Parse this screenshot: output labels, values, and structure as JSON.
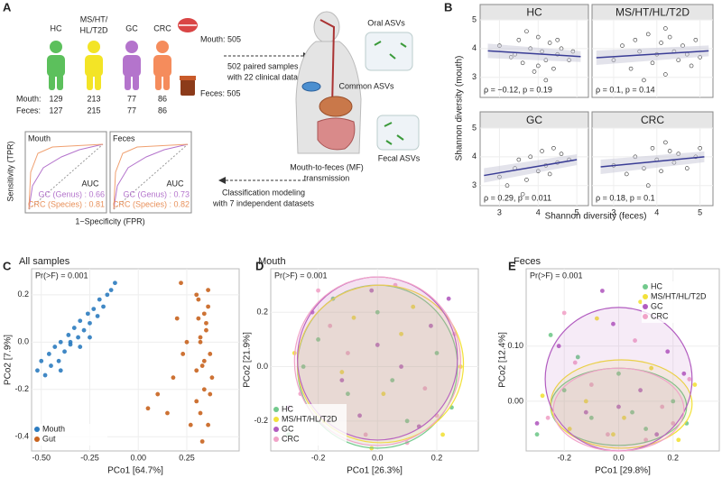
{
  "diagram": {
    "panel": "A",
    "groups": [
      {
        "name_lines": [
          "HC"
        ],
        "color": "#5cc05c",
        "mouth": "129",
        "feces": "127"
      },
      {
        "name_lines": [
          "MS/HT/",
          "HL/T2D"
        ],
        "color": "#f3e426",
        "mouth": "213",
        "feces": "215"
      },
      {
        "name_lines": [
          "GC"
        ],
        "color": "#b474cc",
        "mouth": "77",
        "feces": "77"
      },
      {
        "name_lines": [
          "CRC"
        ],
        "color": "#f58c5c",
        "mouth": "86",
        "feces": "86"
      }
    ],
    "mouth_row": "Mouth:",
    "feces_row": "Feces:",
    "mouth_total": "Mouth: 505",
    "feces_total": "Feces: 505",
    "samples": [
      "502 paired samples",
      "with 22 clinical data"
    ],
    "oral": "Oral ASVs",
    "common": "Common ASVs",
    "fecal": "Fecal ASVs",
    "transmission": [
      "Mouth-to-feces (MF)",
      "transmission"
    ],
    "modeling": [
      "Classification modeling",
      "with 7 independent datasets"
    ],
    "roc": [
      {
        "title": "Mouth",
        "auc": "AUC",
        "lines": [
          "GC (Genus) : 0.66",
          "CRC (Species) : 0.81"
        ]
      },
      {
        "title": "Feces",
        "auc": "AUC",
        "lines": [
          "GC (Genus) : 0.73",
          "CRC (Species) : 0.82"
        ]
      }
    ],
    "roc_ylabel": "Sensitivity (TPR)",
    "roc_xlabel": "1−Specificity (FPR)"
  },
  "chart_data": [
    {
      "type": "facet_scatter",
      "panel": "B",
      "ylabel": "Shannon diversity (mouth)",
      "xlabel": "Shannon diversity (feces)",
      "xlim": [
        2.5,
        5.3
      ],
      "ylim": [
        2.3,
        5.0
      ],
      "xticks": [
        3,
        4,
        5
      ],
      "yticks": [
        3,
        4,
        5
      ],
      "color": "#3a3d96",
      "facets": [
        {
          "title": "HC",
          "annotation": "ρ = −0.12, p = 0.19",
          "x": [
            3.0,
            3.3,
            3.5,
            3.6,
            3.8,
            3.9,
            4.0,
            4.1,
            4.2,
            4.3,
            4.4,
            4.5,
            4.6,
            4.8,
            4.9,
            3.7,
            4.2,
            3.4,
            4.5,
            4.0
          ],
          "y": [
            4.1,
            3.7,
            4.3,
            3.5,
            4.0,
            3.2,
            4.4,
            3.9,
            3.6,
            4.2,
            3.3,
            3.8,
            4.0,
            3.6,
            3.9,
            4.6,
            2.9,
            3.8,
            4.3,
            3.4
          ],
          "trend": {
            "x": [
              2.7,
              5.1
            ],
            "y": [
              3.92,
              3.72
            ]
          }
        },
        {
          "title": "MS/HT/HL/T2D",
          "annotation": "ρ = 0.1, p = 0.14",
          "x": [
            3.0,
            3.2,
            3.4,
            3.5,
            3.6,
            3.8,
            3.9,
            4.0,
            4.1,
            4.2,
            4.3,
            4.4,
            4.5,
            4.6,
            4.7,
            4.9,
            5.0,
            3.7,
            4.2,
            4.8
          ],
          "y": [
            3.6,
            4.1,
            3.3,
            4.3,
            3.9,
            4.5,
            3.5,
            3.8,
            4.2,
            3.1,
            4.4,
            3.9,
            3.6,
            4.1,
            3.8,
            4.3,
            3.7,
            2.9,
            4.7,
            3.4
          ],
          "trend": {
            "x": [
              2.6,
              5.2
            ],
            "y": [
              3.68,
              3.92
            ]
          }
        },
        {
          "title": "GC",
          "annotation": "ρ = 0.29, p = 0.011",
          "x": [
            3.0,
            3.2,
            3.4,
            3.5,
            3.7,
            3.8,
            4.0,
            4.1,
            4.2,
            4.4,
            4.5,
            4.6,
            4.8,
            3.6,
            4.3
          ],
          "y": [
            3.3,
            3.0,
            3.6,
            3.9,
            3.2,
            4.0,
            3.5,
            4.2,
            3.7,
            4.3,
            3.8,
            4.1,
            3.9,
            2.7,
            3.4
          ],
          "trend": {
            "x": [
              2.6,
              5.0
            ],
            "y": [
              3.35,
              3.9
            ]
          }
        },
        {
          "title": "CRC",
          "annotation": "ρ = 0.18, p = 0.1",
          "x": [
            3.0,
            3.3,
            3.5,
            3.7,
            3.9,
            4.0,
            4.1,
            4.3,
            4.4,
            4.5,
            4.7,
            4.9,
            5.0,
            3.8,
            4.2
          ],
          "y": [
            3.7,
            3.4,
            4.0,
            3.6,
            4.3,
            3.9,
            3.5,
            4.2,
            3.8,
            4.1,
            3.6,
            4.0,
            4.3,
            3.0,
            4.5
          ],
          "trend": {
            "x": [
              2.7,
              5.1
            ],
            "y": [
              3.65,
              4.0
            ]
          }
        }
      ]
    },
    {
      "type": "scatter",
      "panel": "C",
      "title": "All samples",
      "annotation": "Pr(>F) = 0.001",
      "xlabel": "PCo1 [64.7%]",
      "ylabel": "PCo2 [7.9%]",
      "legend": "bottom-left",
      "xlim": [
        -0.55,
        0.52
      ],
      "ylim": [
        -0.46,
        0.31
      ],
      "xticks": [
        {
          "value": -0.5,
          "label": "-0.50"
        },
        {
          "value": -0.25,
          "label": "-0.25"
        },
        {
          "value": 0,
          "label": "0.00"
        },
        {
          "value": 0.25,
          "label": "0.25"
        }
      ],
      "yticks": [
        0.2,
        {
          "value": 0,
          "label": "0.0"
        },
        -0.2,
        -0.4
      ],
      "series": [
        {
          "name": "Mouth",
          "color": "#2b7bbf",
          "x": [
            -0.52,
            -0.5,
            -0.48,
            -0.46,
            -0.45,
            -0.43,
            -0.41,
            -0.4,
            -0.38,
            -0.36,
            -0.35,
            -0.33,
            -0.31,
            -0.3,
            -0.28,
            -0.26,
            -0.25,
            -0.23,
            -0.21,
            -0.2,
            -0.18,
            -0.16,
            -0.14,
            -0.12,
            -0.3,
            -0.4,
            -0.25,
            -0.35
          ],
          "y": [
            -0.12,
            -0.08,
            -0.14,
            -0.05,
            -0.1,
            -0.02,
            -0.08,
            0.0,
            -0.04,
            0.03,
            -0.01,
            0.06,
            0.02,
            0.09,
            0.05,
            0.12,
            0.08,
            0.14,
            0.11,
            0.18,
            0.15,
            0.2,
            0.22,
            0.25,
            -0.02,
            -0.12,
            0.02,
            0.0
          ]
        },
        {
          "name": "Gut",
          "color": "#c8631e",
          "x": [
            0.3,
            0.31,
            0.32,
            0.33,
            0.34,
            0.35,
            0.36,
            0.37,
            0.38,
            0.3,
            0.32,
            0.34,
            0.36,
            0.33,
            0.35,
            0.31,
            0.37,
            0.34,
            0.32,
            0.36,
            0.3,
            0.22,
            0.2,
            0.15,
            0.1,
            0.05,
            0.25,
            0.18,
            0.23,
            0.27
          ],
          "y": [
            0.2,
            0.1,
            0.0,
            -0.1,
            -0.2,
            0.05,
            0.15,
            -0.05,
            -0.15,
            -0.25,
            -0.3,
            0.12,
            -0.35,
            -0.42,
            0.08,
            0.18,
            -0.22,
            -0.08,
            0.02,
            0.22,
            -0.12,
            0.25,
            0.1,
            -0.3,
            -0.22,
            -0.28,
            0.0,
            -0.15,
            -0.05,
            -0.35
          ]
        }
      ]
    },
    {
      "type": "scatter",
      "panel": "D",
      "title": "Mouth",
      "annotation": "Pr(>F) = 0.001",
      "xlabel": "PCo1 [26.3%]",
      "ylabel": "PCo2 [21.9%]",
      "legend": "bottom-left",
      "xlim": [
        -0.36,
        0.34
      ],
      "ylim": [
        -0.31,
        0.36
      ],
      "xticks": [
        -0.2,
        {
          "value": 0,
          "label": "0.0"
        },
        0.2
      ],
      "yticks": [
        0.2,
        {
          "value": 0,
          "label": "0.0"
        },
        -0.2
      ],
      "series": [
        {
          "name": "HC",
          "color": "#72c98c",
          "ellipse": [
            0.0,
            0.0,
            0.27,
            0.3
          ],
          "x": [
            -0.3,
            -0.2,
            -0.1,
            0.0,
            0.1,
            0.2,
            -0.15,
            0.05,
            0.25,
            -0.25
          ],
          "y": [
            -0.25,
            0.1,
            -0.1,
            0.2,
            -0.2,
            0.05,
            0.25,
            -0.05,
            -0.15,
            0.0
          ]
        },
        {
          "name": "MS/HT/HL/T2D",
          "color": "#f2e13a",
          "ellipse": [
            0.01,
            0.01,
            0.28,
            0.29
          ],
          "x": [
            -0.28,
            -0.18,
            -0.08,
            0.02,
            0.12,
            0.22,
            -0.12,
            0.08,
            0.28,
            -0.02
          ],
          "y": [
            0.05,
            -0.2,
            0.18,
            -0.1,
            0.22,
            -0.25,
            -0.02,
            0.12,
            0.0,
            -0.3
          ]
        },
        {
          "name": "GC",
          "color": "#b25cc0",
          "ellipse": [
            0.0,
            0.03,
            0.27,
            0.3
          ],
          "x": [
            -0.22,
            -0.12,
            -0.02,
            0.08,
            0.18,
            -0.3,
            0.14,
            -0.06,
            0.24,
            0.0
          ],
          "y": [
            0.2,
            -0.05,
            0.28,
            0.0,
            0.15,
            -0.15,
            -0.22,
            -0.18,
            0.25,
            0.08
          ]
        },
        {
          "name": "CRC",
          "color": "#f1a3c8",
          "ellipse": [
            0.0,
            0.02,
            0.28,
            0.31
          ],
          "x": [
            -0.26,
            -0.16,
            -0.04,
            0.06,
            0.16,
            0.26,
            -0.1,
            0.1,
            -0.2,
            0.2
          ],
          "y": [
            -0.1,
            0.15,
            -0.25,
            0.3,
            -0.08,
            0.12,
            0.05,
            -0.28,
            0.28,
            -0.18
          ]
        }
      ]
    },
    {
      "type": "scatter",
      "panel": "E",
      "title": "Feces",
      "annotation": "Pr(>F) = 0.001",
      "xlabel": "PCo1 [29.8%]",
      "ylabel": "PCo2 [12.4%]",
      "legend": "top-right",
      "xlim": [
        -0.34,
        0.37
      ],
      "ylim": [
        -0.09,
        0.24
      ],
      "xticks": [
        -0.2,
        {
          "value": 0,
          "label": "0.0"
        },
        0.2
      ],
      "yticks": [
        {
          "value": 0.1,
          "label": "0.10"
        },
        {
          "value": 0,
          "label": "0.00"
        }
      ],
      "series": [
        {
          "name": "HC",
          "color": "#72c98c",
          "ellipse": [
            0.0,
            -0.01,
            0.25,
            0.07
          ],
          "x": [
            -0.3,
            -0.2,
            -0.1,
            0.0,
            0.1,
            0.2,
            -0.15,
            0.05,
            0.25,
            -0.25
          ],
          "y": [
            -0.06,
            0.02,
            -0.03,
            0.05,
            -0.05,
            0.0,
            0.08,
            -0.02,
            -0.04,
            0.12
          ]
        },
        {
          "name": "MS/HT/HL/T2D",
          "color": "#f2e13a",
          "ellipse": [
            0.01,
            -0.005,
            0.26,
            0.08
          ],
          "x": [
            -0.28,
            -0.18,
            -0.08,
            0.02,
            0.12,
            0.22,
            -0.12,
            0.08,
            0.28,
            -0.02
          ],
          "y": [
            0.01,
            -0.05,
            0.15,
            -0.03,
            0.06,
            -0.07,
            0.0,
            0.18,
            0.03,
            -0.06
          ]
        },
        {
          "name": "GC",
          "color": "#b25cc0",
          "ellipse": [
            0.0,
            0.04,
            0.27,
            0.13
          ],
          "x": [
            -0.22,
            -0.12,
            -0.02,
            0.08,
            0.18,
            -0.3,
            0.14,
            -0.06,
            0.24,
            0.0
          ],
          "y": [
            0.1,
            -0.02,
            0.14,
            0.02,
            0.09,
            -0.04,
            -0.06,
            0.2,
            0.05,
            -0.01
          ]
        },
        {
          "name": "CRC",
          "color": "#f1a3c8",
          "ellipse": [
            0.0,
            -0.015,
            0.24,
            0.075
          ],
          "x": [
            -0.26,
            -0.16,
            -0.04,
            0.06,
            0.16,
            0.26,
            -0.1,
            0.1,
            -0.2,
            0.2
          ],
          "y": [
            -0.03,
            0.07,
            -0.06,
            0.11,
            -0.01,
            0.04,
            0.03,
            -0.07,
            0.16,
            -0.04
          ]
        }
      ]
    }
  ]
}
